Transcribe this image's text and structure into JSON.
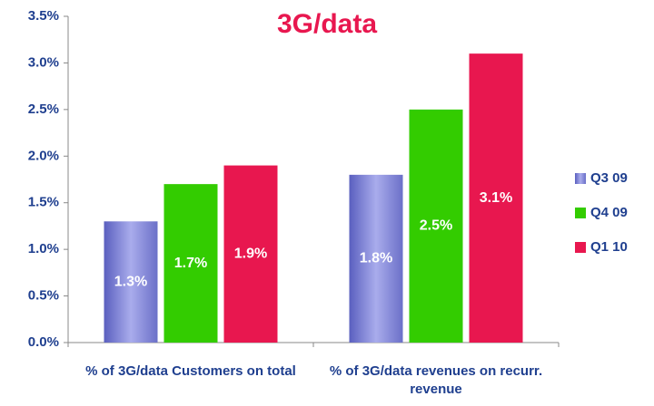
{
  "chart_data": {
    "type": "bar",
    "title": "3G/data",
    "categories": [
      "% of 3G/data Customers on total",
      "% of 3G/data revenues on recurr. revenue"
    ],
    "series": [
      {
        "name": "Q3 09",
        "color": "#7a80d2",
        "values": [
          1.3,
          1.8
        ],
        "value_labels": [
          "1.3%",
          "1.8%"
        ]
      },
      {
        "name": "Q4 09",
        "color": "#33cc00",
        "values": [
          1.7,
          2.5
        ],
        "value_labels": [
          "1.7%",
          "2.5%"
        ]
      },
      {
        "name": "Q1 10",
        "color": "#e8174f",
        "values": [
          1.9,
          3.1
        ],
        "value_labels": [
          "1.9%",
          "3.1%"
        ]
      }
    ],
    "ylim": [
      0,
      3.5
    ],
    "yticks": [
      {
        "value": 0,
        "label": "0.0%"
      },
      {
        "value": 0.5,
        "label": "0.5%"
      },
      {
        "value": 1,
        "label": "1.0%"
      },
      {
        "value": 1.5,
        "label": "1.5%"
      },
      {
        "value": 2,
        "label": "2.0%"
      },
      {
        "value": 2.5,
        "label": "2.5%"
      },
      {
        "value": 3,
        "label": "3.0%"
      },
      {
        "value": 3.5,
        "label": "3.5%"
      }
    ],
    "legend": "right",
    "grid": false
  }
}
